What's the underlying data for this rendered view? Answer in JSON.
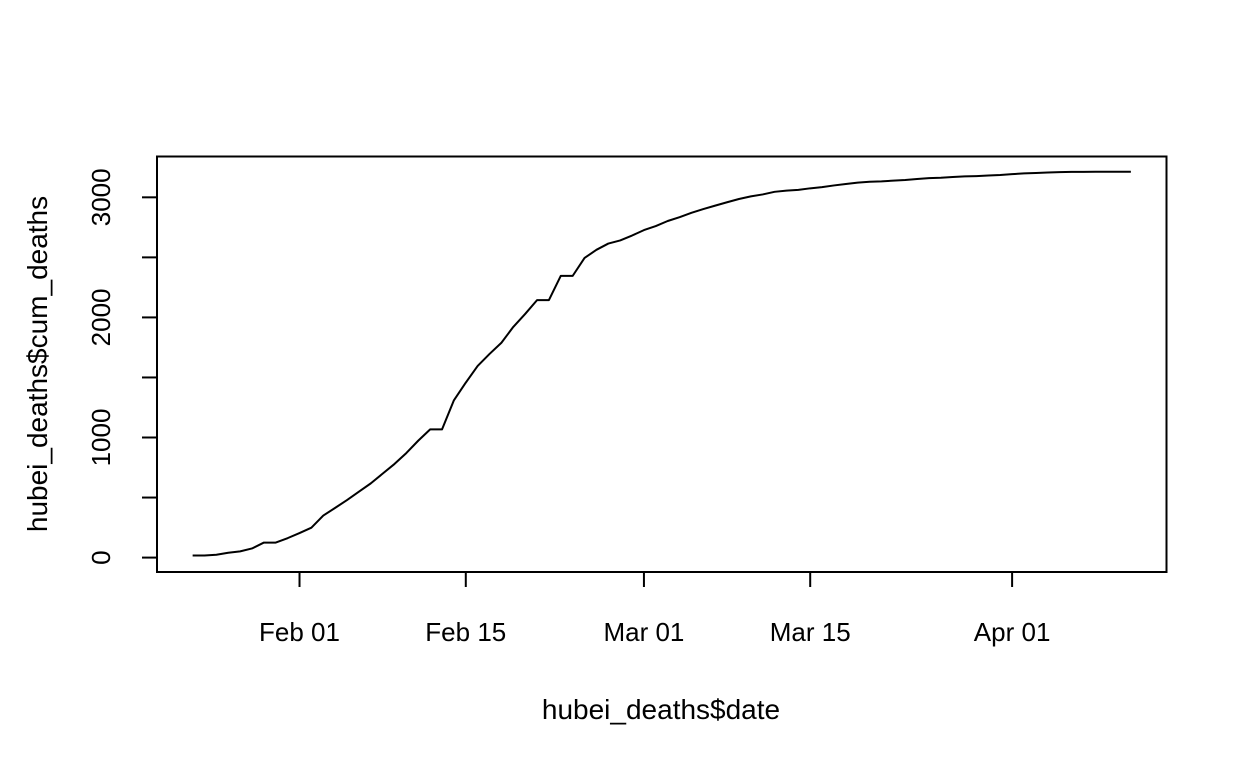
{
  "chart_data": {
    "type": "line",
    "xlabel": "hubei_deaths$date",
    "ylabel": "hubei_deaths$cum_deaths",
    "x_axis": {
      "type": "date",
      "range": [
        "2020-01-20",
        "2020-04-14"
      ],
      "ticks": [
        {
          "date": "2020-02-01",
          "label": "Feb 01"
        },
        {
          "date": "2020-02-15",
          "label": "Feb 15"
        },
        {
          "date": "2020-03-01",
          "label": "Mar 01"
        },
        {
          "date": "2020-03-15",
          "label": "Mar 15"
        },
        {
          "date": "2020-04-01",
          "label": "Apr 01"
        }
      ]
    },
    "y_axis": {
      "range": [
        -120,
        3340
      ],
      "ticks": [
        {
          "value": 0,
          "label": "0"
        },
        {
          "value": 500,
          "label": ""
        },
        {
          "value": 1000,
          "label": "1000"
        },
        {
          "value": 1500,
          "label": ""
        },
        {
          "value": 2000,
          "label": "2000"
        },
        {
          "value": 2500,
          "label": ""
        },
        {
          "value": 3000,
          "label": "3000"
        }
      ]
    },
    "grid": false,
    "line_color": "#000000",
    "series": [
      {
        "x": [
          "2020-01-23",
          "2020-01-24",
          "2020-01-25",
          "2020-01-26",
          "2020-01-27",
          "2020-01-28",
          "2020-01-29",
          "2020-01-30",
          "2020-01-31",
          "2020-02-01",
          "2020-02-02",
          "2020-02-03",
          "2020-02-04",
          "2020-02-05",
          "2020-02-06",
          "2020-02-07",
          "2020-02-08",
          "2020-02-09",
          "2020-02-10",
          "2020-02-11",
          "2020-02-12",
          "2020-02-13",
          "2020-02-14",
          "2020-02-15",
          "2020-02-16",
          "2020-02-17",
          "2020-02-18",
          "2020-02-19",
          "2020-02-20",
          "2020-02-21",
          "2020-02-22",
          "2020-02-23",
          "2020-02-24",
          "2020-02-25",
          "2020-02-26",
          "2020-02-27",
          "2020-02-28",
          "2020-02-29",
          "2020-03-01",
          "2020-03-02",
          "2020-03-03",
          "2020-03-04",
          "2020-03-05",
          "2020-03-06",
          "2020-03-07",
          "2020-03-08",
          "2020-03-09",
          "2020-03-10",
          "2020-03-11",
          "2020-03-12",
          "2020-03-13",
          "2020-03-14",
          "2020-03-15",
          "2020-03-16",
          "2020-03-17",
          "2020-03-18",
          "2020-03-19",
          "2020-03-20",
          "2020-03-21",
          "2020-03-22",
          "2020-03-23",
          "2020-03-24",
          "2020-03-25",
          "2020-03-26",
          "2020-03-27",
          "2020-03-28",
          "2020-03-29",
          "2020-03-30",
          "2020-03-31",
          "2020-04-01",
          "2020-04-02",
          "2020-04-03",
          "2020-04-04",
          "2020-04-05",
          "2020-04-06",
          "2020-04-07",
          "2020-04-08",
          "2020-04-09",
          "2020-04-10",
          "2020-04-11"
        ],
        "y": [
          17,
          17,
          24,
          40,
          52,
          76,
          125,
          125,
          162,
          204,
          249,
          350,
          414,
          479,
          549,
          618,
          699,
          780,
          871,
          974,
          1068,
          1068,
          1310,
          1457,
          1596,
          1696,
          1789,
          1921,
          2029,
          2144,
          2144,
          2346,
          2346,
          2495,
          2563,
          2615,
          2641,
          2682,
          2727,
          2761,
          2803,
          2835,
          2871,
          2902,
          2931,
          2959,
          2986,
          3008,
          3024,
          3046,
          3056,
          3062,
          3075,
          3085,
          3099,
          3111,
          3122,
          3130,
          3133,
          3139,
          3144,
          3153,
          3160,
          3163,
          3169,
          3174,
          3177,
          3182,
          3186,
          3193,
          3199,
          3203,
          3207,
          3210,
          3212,
          3212,
          3213,
          3213,
          3213,
          3213
        ]
      }
    ]
  }
}
